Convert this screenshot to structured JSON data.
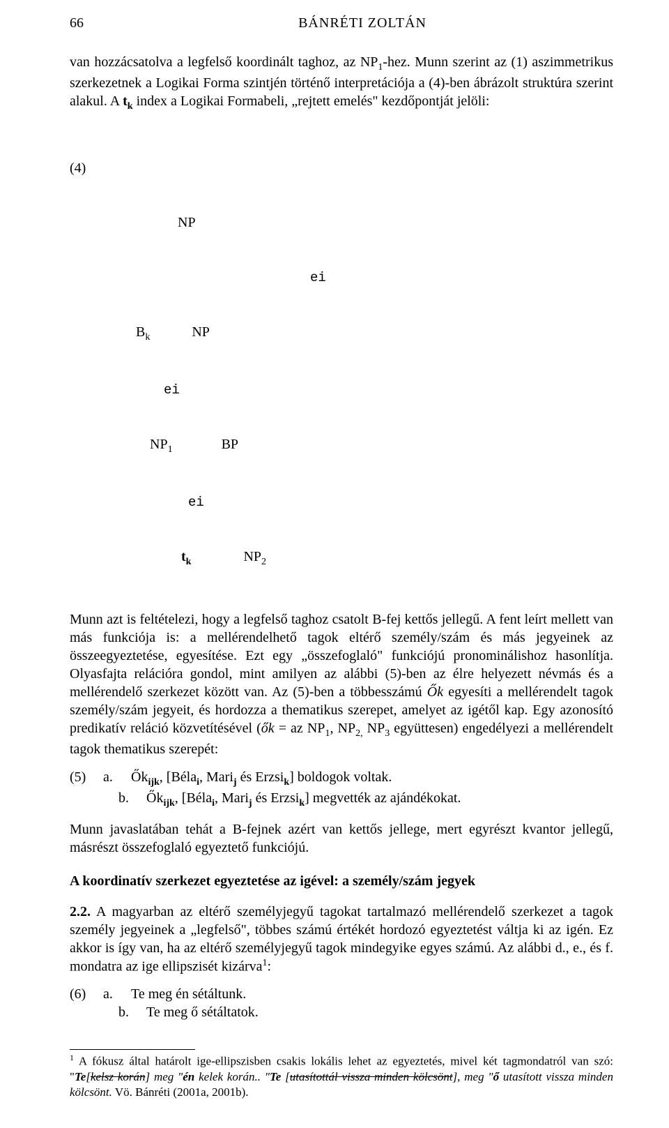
{
  "page_number": "66",
  "running_head": "BÁNRÉTI ZOLTÁN",
  "para1_a": "van hozzácsatolva a legfelső koordinált taghoz, az NP",
  "para1_a_sub": "1",
  "para1_b": "-hez. Munn szerint az (1) aszimmetrikus szerkezetnek a Logikai Forma szintjén történő interpretációja a (4)-ben ábrázolt struktúra szerint alakul. A ",
  "para1_tk": "t",
  "para1_tk_sub": "k",
  "para1_c": " index a Logikai Formabeli, „rejtett emelés\" kezdőpontját jelöli:",
  "tree": {
    "label4": "(4)",
    "nodes": {
      "NP_top": "NP",
      "ei1": "ei",
      "Bk": "B",
      "Bk_sub": "k",
      "NP_mid": "NP",
      "ei2": "ei",
      "NP1": "NP",
      "NP1_sub": "1",
      "BP": "BP",
      "ei3": "ei",
      "tk": "t",
      "tk_sub": "k",
      "NP2": "NP",
      "NP2_sub": "2"
    }
  },
  "para2_a": "Munn azt is feltételezi, hogy a legfelső taghoz csatolt B-fej kettős jellegű. A fent leírt mellett van más funkciója is: a mellérendelhető tagok eltérő személy/szám és más jegyeinek az összeegyeztetése, egyesítése. Ezt egy „összefoglaló\" funkciójú pronominálishoz hasonlítja. Olyasfajta relációra gondol, mint amilyen az alábbi (5)-ben az élre helyezett névmás és a mellérendelő szerkezet között van. Az (5)-ben a többesszámú ",
  "para2_ok": "Ők",
  "para2_b": " egyesíti a mellérendelt tagok személy/szám jegyeit, és hordozza a thematikus szerepet, amelyet az igétől kap. Egy azonosító predikatív reláció közvetítésével (",
  "para2_ok2": "ők",
  "para2_c": " = az NP",
  "para2_c_sub1": "1",
  "para2_d": ", NP",
  "para2_d_sub2": "2,",
  "para2_e": "  NP",
  "para2_e_sub3": "3",
  "para2_f": "  együttesen) engedélyezi a mellérendelt tagok thematikus szerepét:",
  "ex5": {
    "num": "(5)",
    "a": "a.",
    "a_text_pre": "Ők",
    "a_sub": "ijk",
    "a_mid": ", [Béla",
    "a_sub_i": "i",
    "a_mid2": ", Mari",
    "a_sub_j": "j",
    "a_mid3": "  és Erzsi",
    "a_sub_k": "k",
    "a_end": "] boldogok voltak.",
    "b": "b.",
    "b_text_pre": "Ők",
    "b_sub": "ijk",
    "b_mid": ", [Béla",
    "b_sub_i": "i",
    "b_mid2": ", Mari",
    "b_sub_j": "j",
    "b_mid3": "  és Erzsi",
    "b_sub_k": "k",
    "b_end": "] megvették az ajándékokat."
  },
  "para3": "Munn javaslatában tehát a B-fejnek azért van kettős jellege, mert egyrészt kvantor jellegű, másrészt összefoglaló egyeztető funkciójú.",
  "section_title": "A koordinatív szerkezet egyeztetése az igével: a személy/szám jegyek",
  "para4_lead": "2.2.",
  "para4_a": " A magyarban az eltérő személyjegyű tagokat tartalmazó mellérendelő szerkezet a tagok személy jegyeinek a „legfelső\", többes számú értékét hordozó egyeztetést váltja ki az igén. Ez akkor is így van, ha az eltérő személyjegyű tagok mindegyike egyes számú.  Az alábbi d., e., és f. mondatra az ige ellipszisét kizárva",
  "para4_sup": "1",
  "para4_b": ":",
  "ex6": {
    "num": "(6)",
    "a": "a.",
    "a_text": "Te meg én sétáltunk.",
    "b": "b.",
    "b_text": "Te meg ő sétáltatok."
  },
  "footnote_sup": "1",
  "footnote_a": " A fókusz által határolt ige-ellipszisben csakis lokális lehet az egyeztetés, mivel két tagmondatról van szó: \"",
  "footnote_te1": "Te",
  "footnote_brk1": "[",
  "footnote_strike1": "kelsz korán",
  "footnote_brk1b": "]",
  "footnote_mid1": " meg \"",
  "footnote_en": "én",
  "footnote_mid1b": " kelek korán.. \"",
  "footnote_te2": "Te",
  "footnote_brk2": " [",
  "footnote_strike2": "utasítottál vissza minden kölcsönt",
  "footnote_brk2b": "],",
  "footnote_mid2": " meg \"",
  "footnote_o": "ő",
  "footnote_end": " utasított vissza minden kölcsönt.",
  "footnote_vo": " Vö. Bánréti (2001a, 2001b)."
}
